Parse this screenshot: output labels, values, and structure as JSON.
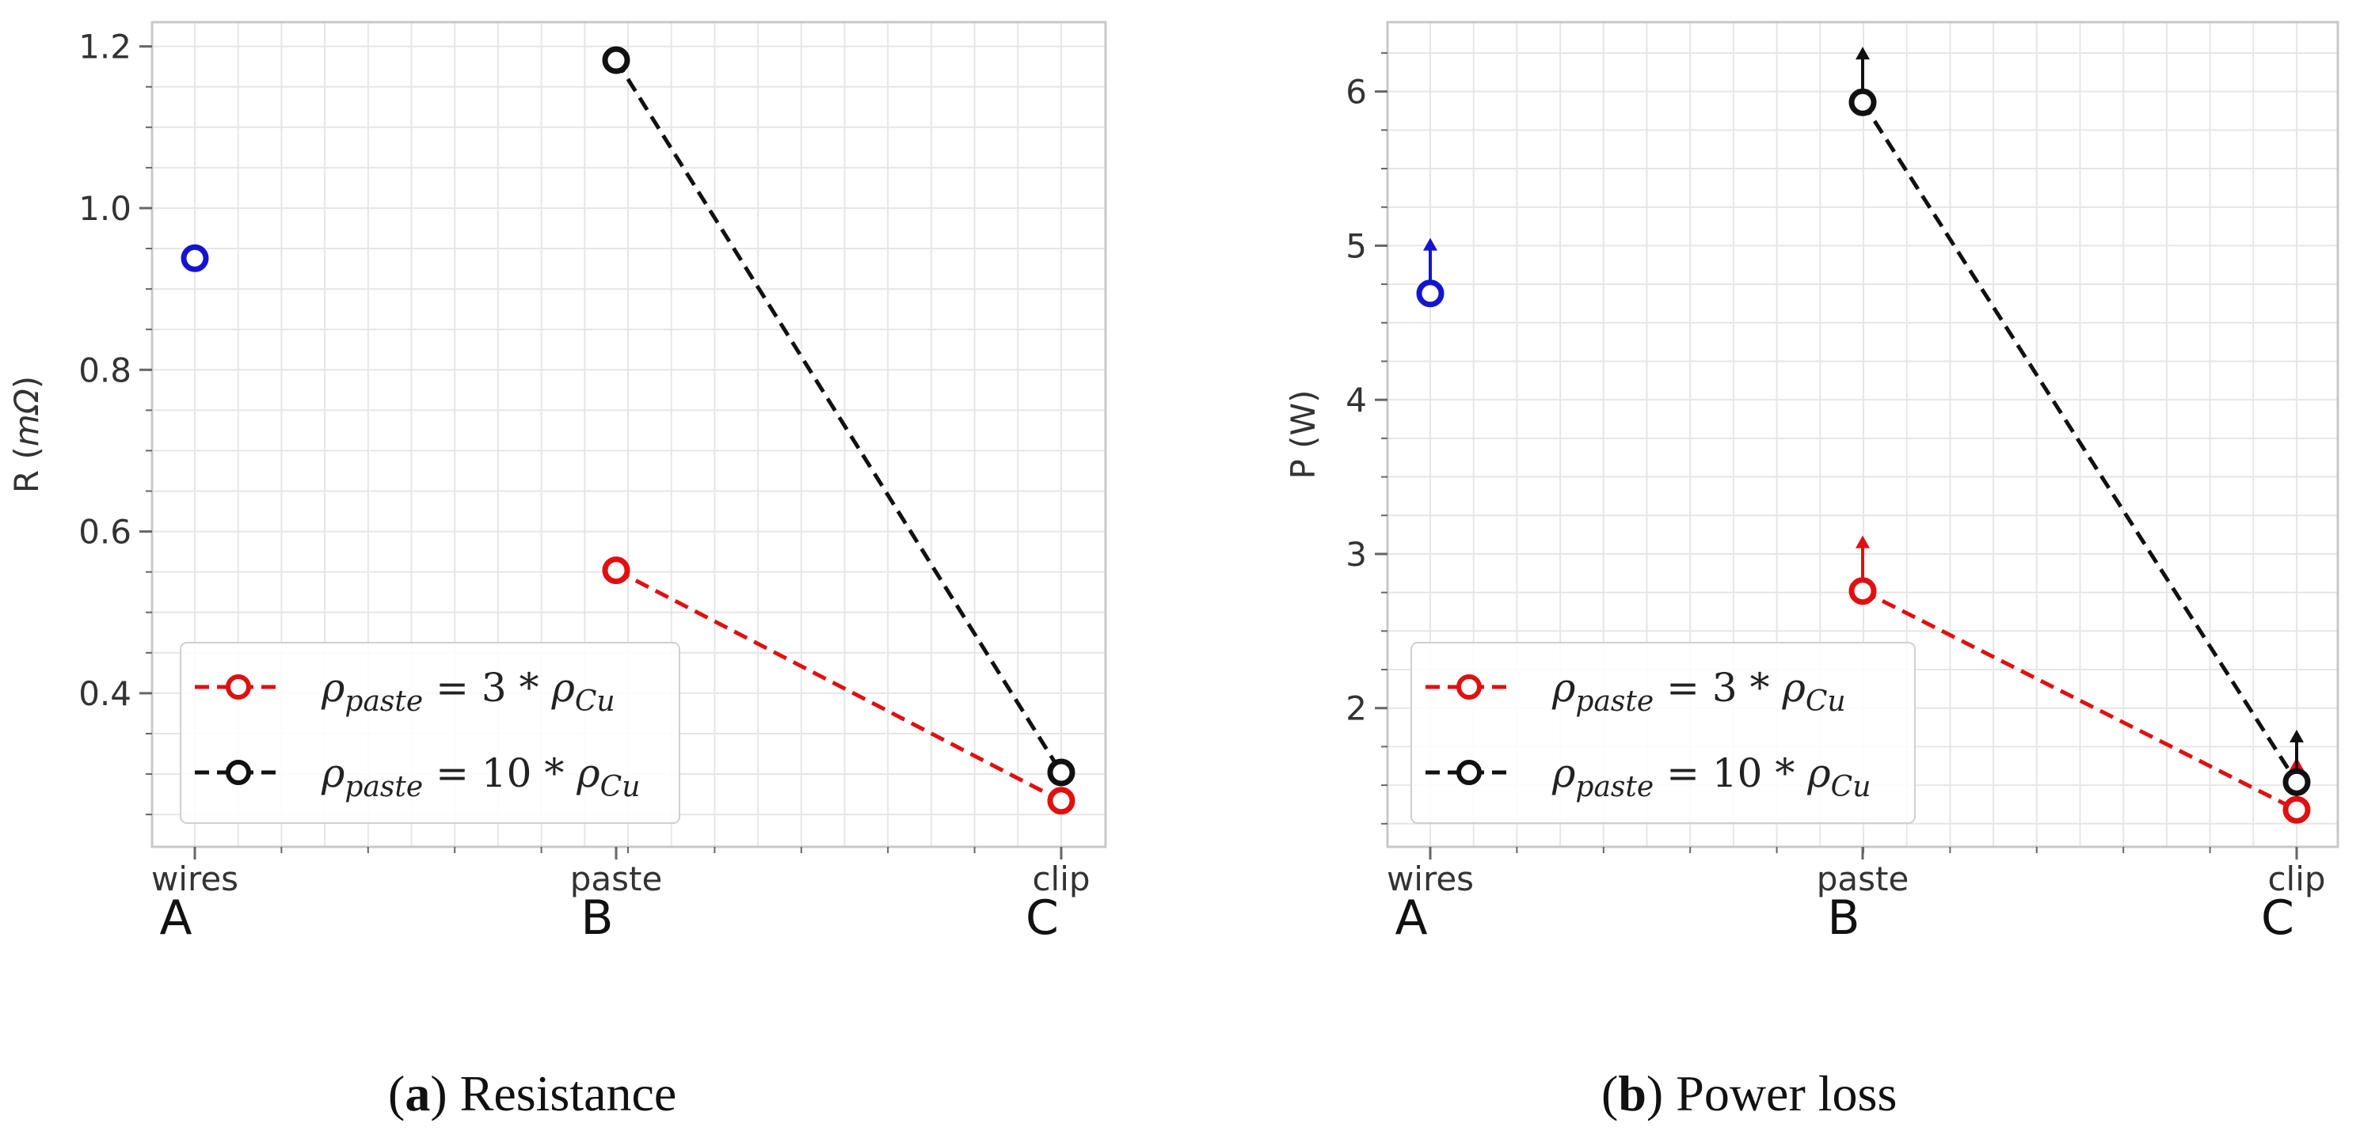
{
  "colors": {
    "series_low": "#e01010",
    "series_high": "#111111",
    "wires": "#1414d0",
    "grid": "#e6e6e6",
    "frame": "#c8c8c8",
    "tick": "#666666"
  },
  "chart_data": [
    {
      "id": "a",
      "type": "line",
      "xlabel": "",
      "ylabel": "R (mΩ)",
      "ylabel_plain": "R (",
      "ylabel_math": "mΩ",
      "ylabel_close": ")",
      "categories": [
        "wires",
        "paste",
        "clip"
      ],
      "letters": [
        "A",
        "B",
        "C"
      ],
      "ylim": [
        0.21,
        1.23
      ],
      "yticks": [
        0.4,
        0.6,
        0.8,
        1.0,
        1.2
      ],
      "ytick_labels": [
        "0.4",
        "0.6",
        "0.8",
        "1.0",
        "1.2"
      ],
      "grid": true,
      "legend_position": "lower-left",
      "series": [
        {
          "name": "ρpaste = 3 * ρCu",
          "style": "dashed",
          "color_key": "series_low",
          "points": [
            {
              "category": "paste",
              "value": 0.552
            },
            {
              "category": "clip",
              "value": 0.267
            }
          ]
        },
        {
          "name": "ρpaste = 10 * ρCu",
          "style": "dashed",
          "color_key": "series_high",
          "points": [
            {
              "category": "paste",
              "value": 1.183
            },
            {
              "category": "clip",
              "value": 0.302
            }
          ]
        },
        {
          "name": "wires",
          "style": "marker",
          "color_key": "wires",
          "points": [
            {
              "category": "wires",
              "value": 0.938
            }
          ]
        }
      ],
      "arrows": []
    },
    {
      "id": "b",
      "type": "line",
      "xlabel": "",
      "ylabel": "P (W)",
      "ylabel_plain": "P (W)",
      "ylabel_math": "",
      "ylabel_close": "",
      "categories": [
        "wires",
        "paste",
        "clip"
      ],
      "letters": [
        "A",
        "B",
        "C"
      ],
      "ylim": [
        1.1,
        6.45
      ],
      "yticks": [
        2,
        3,
        4,
        5,
        6
      ],
      "ytick_labels": [
        "2",
        "3",
        "4",
        "5",
        "6"
      ],
      "grid": true,
      "legend_position": "lower-left",
      "series": [
        {
          "name": "ρpaste = 3 * ρCu",
          "style": "dashed",
          "color_key": "series_low",
          "points": [
            {
              "category": "paste",
              "value": 2.76
            },
            {
              "category": "clip",
              "value": 1.34
            }
          ]
        },
        {
          "name": "ρpaste = 10 * ρCu",
          "style": "dashed",
          "color_key": "series_high",
          "points": [
            {
              "category": "paste",
              "value": 5.93
            },
            {
              "category": "clip",
              "value": 1.52
            }
          ]
        },
        {
          "name": "wires",
          "style": "marker",
          "color_key": "wires",
          "points": [
            {
              "category": "wires",
              "value": 4.69
            }
          ]
        }
      ],
      "arrows": [
        {
          "category": "wires",
          "from": 4.69,
          "to": 5.05,
          "color_key": "wires"
        },
        {
          "category": "paste",
          "from": 2.76,
          "to": 3.12,
          "color_key": "series_low"
        },
        {
          "category": "paste",
          "from": 5.93,
          "to": 6.29,
          "color_key": "series_high"
        },
        {
          "category": "clip",
          "from": 1.34,
          "to": 1.68,
          "color_key": "series_low"
        },
        {
          "category": "clip",
          "from": 1.52,
          "to": 1.86,
          "color_key": "series_high"
        }
      ]
    }
  ],
  "legend": {
    "items": [
      {
        "rho": "ρ",
        "sub": "paste",
        "eq": " = 3 * ",
        "rho2": "ρ",
        "sub2": "Cu",
        "color_key": "series_low"
      },
      {
        "rho": "ρ",
        "sub": "paste",
        "eq": " = 10 * ",
        "rho2": "ρ",
        "sub2": "Cu",
        "color_key": "series_high"
      }
    ]
  },
  "captions": {
    "a_letter": "a",
    "a_text": "Resistance",
    "b_letter": "b",
    "b_text": "Power loss"
  }
}
